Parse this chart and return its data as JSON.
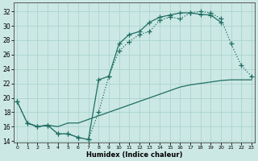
{
  "xlabel": "Humidex (Indice chaleur)",
  "bg_color": "#cce8e4",
  "grid_color": "#aad4ce",
  "line_color": "#1e6e62",
  "xlim": [
    -0.3,
    23.3
  ],
  "ylim": [
    13.8,
    33.2
  ],
  "xticks": [
    0,
    1,
    2,
    3,
    4,
    5,
    6,
    7,
    8,
    9,
    10,
    11,
    12,
    13,
    14,
    15,
    16,
    17,
    18,
    19,
    20,
    21,
    22,
    23
  ],
  "yticks": [
    14,
    16,
    18,
    20,
    22,
    24,
    26,
    28,
    30,
    32
  ],
  "line1_x": [
    0,
    1,
    2,
    3,
    4,
    5,
    6,
    7,
    8,
    9,
    10,
    11,
    12,
    13,
    14,
    15,
    16,
    17,
    18,
    19,
    20
  ],
  "line1_y": [
    19.5,
    16.5,
    16.0,
    16.2,
    15.0,
    15.0,
    14.5,
    14.2,
    22.5,
    23.0,
    27.5,
    28.8,
    29.2,
    30.5,
    31.2,
    31.5,
    31.8,
    31.8,
    31.6,
    31.5,
    30.5
  ],
  "line2_x": [
    0,
    1,
    2,
    3,
    4,
    5,
    6,
    7,
    8,
    9,
    10,
    11,
    12,
    13,
    14,
    15,
    16,
    17,
    18,
    19,
    20,
    21,
    22,
    23
  ],
  "line2_y": [
    19.5,
    16.5,
    16.0,
    16.2,
    15.0,
    15.0,
    14.5,
    14.2,
    18.0,
    23.0,
    26.5,
    27.8,
    28.8,
    29.2,
    30.8,
    31.2,
    31.0,
    31.8,
    32.0,
    31.8,
    31.0,
    27.5,
    24.5,
    23.0
  ],
  "line3_x": [
    1,
    2,
    3,
    4,
    5,
    6,
    7,
    8,
    9,
    10,
    11,
    12,
    13,
    14,
    15,
    16,
    17,
    18,
    19,
    20,
    21,
    22,
    23
  ],
  "line3_y": [
    16.5,
    16.0,
    16.2,
    16.0,
    16.5,
    16.5,
    17.0,
    17.5,
    18.0,
    18.5,
    19.0,
    19.5,
    20.0,
    20.5,
    21.0,
    21.5,
    21.8,
    22.0,
    22.2,
    22.4,
    22.5,
    22.5,
    22.5
  ]
}
